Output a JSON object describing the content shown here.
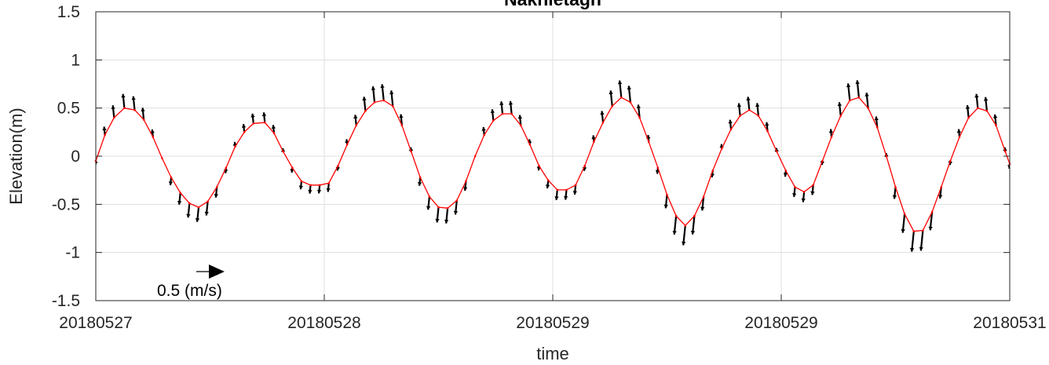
{
  "chart_data": {
    "type": "line",
    "title": "Nakhletagh",
    "xlabel": "time",
    "ylabel": "Elevation(m)",
    "xlim": [
      0,
      4
    ],
    "ylim": [
      -1.5,
      1.5
    ],
    "x_ticks": [
      0,
      1,
      2,
      3,
      4
    ],
    "x_tick_labels": [
      "20180527",
      "20180528",
      "20180529",
      "20180529",
      "20180531"
    ],
    "y_ticks": [
      -1.5,
      -1,
      -0.5,
      0,
      0.5,
      1,
      1.5
    ],
    "y_tick_labels": [
      "-1.5",
      "-1",
      "-0.5",
      "0",
      "0.5",
      "1",
      "1.5"
    ],
    "grid": true,
    "line_color": "#ff0000",
    "arrow_color": "#000000",
    "reference_vector": {
      "label": "0.5 (m/s)",
      "speed": 0.5
    },
    "series": [
      {
        "values": [
          [
            0.0,
            -0.05
          ],
          [
            0.04,
            0.22
          ],
          [
            0.08,
            0.4
          ],
          [
            0.125,
            0.5
          ],
          [
            0.17,
            0.48
          ],
          [
            0.21,
            0.38
          ],
          [
            0.25,
            0.2
          ],
          [
            0.29,
            -0.02
          ],
          [
            0.33,
            -0.22
          ],
          [
            0.37,
            -0.38
          ],
          [
            0.41,
            -0.49
          ],
          [
            0.45,
            -0.53
          ],
          [
            0.49,
            -0.47
          ],
          [
            0.53,
            -0.32
          ],
          [
            0.57,
            -0.12
          ],
          [
            0.61,
            0.1
          ],
          [
            0.65,
            0.25
          ],
          [
            0.69,
            0.34
          ],
          [
            0.74,
            0.35
          ],
          [
            0.78,
            0.24
          ],
          [
            0.82,
            0.05
          ],
          [
            0.86,
            -0.12
          ],
          [
            0.9,
            -0.26
          ],
          [
            0.94,
            -0.3
          ],
          [
            0.98,
            -0.3
          ],
          [
            1.02,
            -0.28
          ],
          [
            1.06,
            -0.1
          ],
          [
            1.1,
            0.12
          ],
          [
            1.14,
            0.32
          ],
          [
            1.18,
            0.47
          ],
          [
            1.22,
            0.56
          ],
          [
            1.26,
            0.58
          ],
          [
            1.3,
            0.52
          ],
          [
            1.34,
            0.32
          ],
          [
            1.38,
            0.05
          ],
          [
            1.42,
            -0.22
          ],
          [
            1.46,
            -0.42
          ],
          [
            1.5,
            -0.53
          ],
          [
            1.54,
            -0.54
          ],
          [
            1.58,
            -0.46
          ],
          [
            1.62,
            -0.26
          ],
          [
            1.66,
            0.0
          ],
          [
            1.7,
            0.22
          ],
          [
            1.74,
            0.37
          ],
          [
            1.78,
            0.44
          ],
          [
            1.82,
            0.44
          ],
          [
            1.86,
            0.32
          ],
          [
            1.9,
            0.12
          ],
          [
            1.94,
            -0.1
          ],
          [
            1.98,
            -0.25
          ],
          [
            2.02,
            -0.35
          ],
          [
            2.06,
            -0.35
          ],
          [
            2.1,
            -0.3
          ],
          [
            2.14,
            -0.1
          ],
          [
            2.18,
            0.15
          ],
          [
            2.22,
            0.35
          ],
          [
            2.26,
            0.52
          ],
          [
            2.3,
            0.61
          ],
          [
            2.34,
            0.56
          ],
          [
            2.38,
            0.4
          ],
          [
            2.42,
            0.15
          ],
          [
            2.46,
            -0.12
          ],
          [
            2.5,
            -0.4
          ],
          [
            2.54,
            -0.62
          ],
          [
            2.58,
            -0.72
          ],
          [
            2.62,
            -0.62
          ],
          [
            2.66,
            -0.42
          ],
          [
            2.7,
            -0.15
          ],
          [
            2.74,
            0.08
          ],
          [
            2.78,
            0.28
          ],
          [
            2.82,
            0.42
          ],
          [
            2.86,
            0.48
          ],
          [
            2.9,
            0.42
          ],
          [
            2.94,
            0.26
          ],
          [
            2.98,
            0.05
          ],
          [
            3.02,
            -0.15
          ],
          [
            3.06,
            -0.32
          ],
          [
            3.1,
            -0.37
          ],
          [
            3.14,
            -0.3
          ],
          [
            3.18,
            -0.05
          ],
          [
            3.22,
            0.2
          ],
          [
            3.26,
            0.42
          ],
          [
            3.3,
            0.58
          ],
          [
            3.34,
            0.61
          ],
          [
            3.38,
            0.5
          ],
          [
            3.42,
            0.3
          ],
          [
            3.46,
            0.0
          ],
          [
            3.5,
            -0.32
          ],
          [
            3.54,
            -0.6
          ],
          [
            3.58,
            -0.78
          ],
          [
            3.62,
            -0.77
          ],
          [
            3.66,
            -0.58
          ],
          [
            3.7,
            -0.32
          ],
          [
            3.74,
            -0.05
          ],
          [
            3.78,
            0.2
          ],
          [
            3.82,
            0.4
          ],
          [
            3.86,
            0.5
          ],
          [
            3.9,
            0.47
          ],
          [
            3.94,
            0.32
          ],
          [
            3.98,
            0.05
          ],
          [
            4.0,
            -0.08
          ]
        ]
      }
    ]
  }
}
